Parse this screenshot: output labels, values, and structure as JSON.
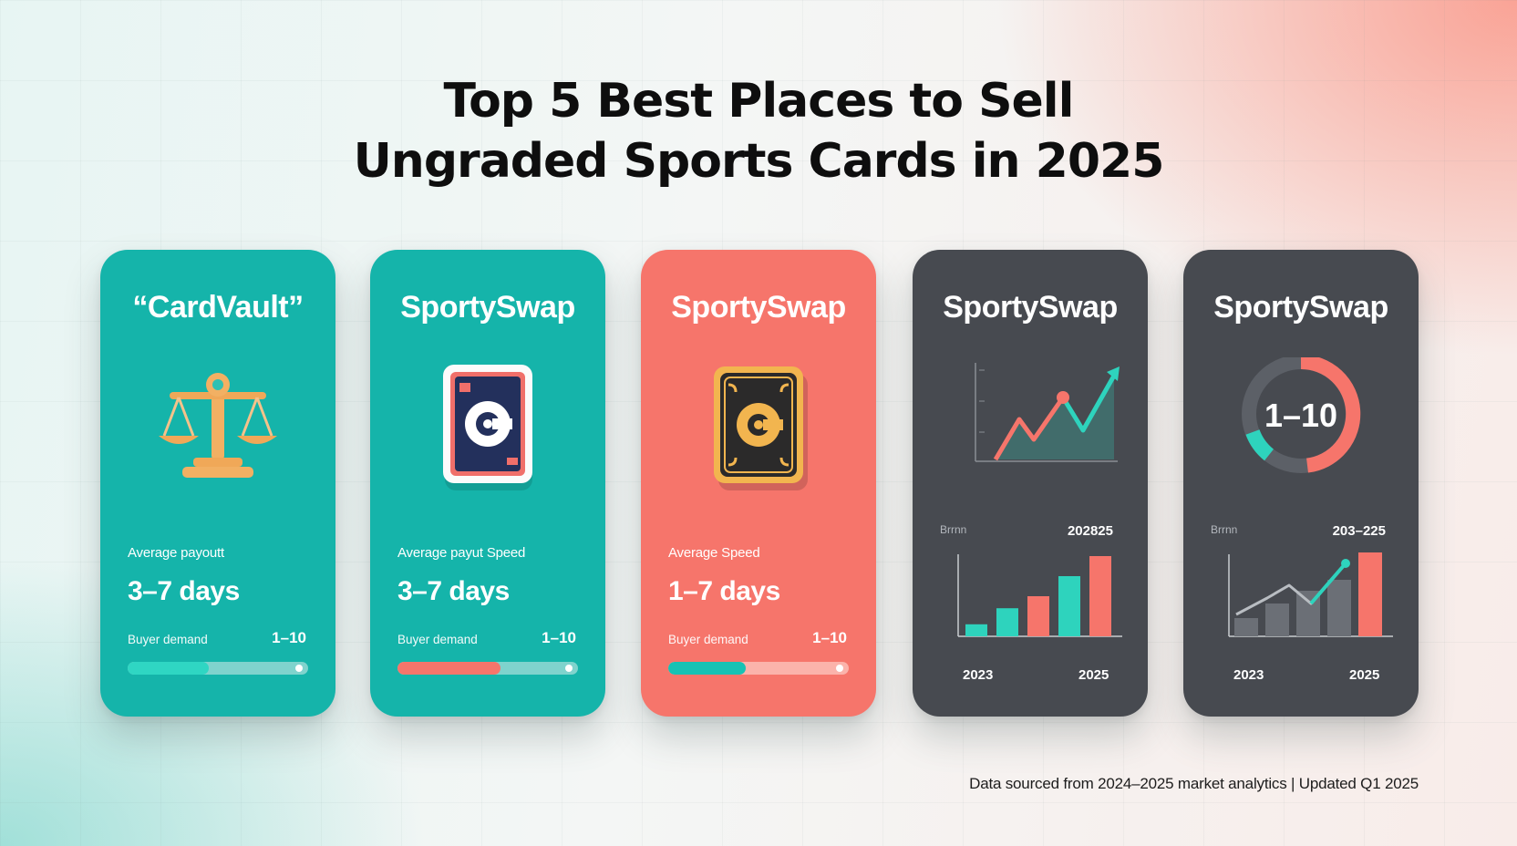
{
  "title_line1": "Top 5 Best Places to Sell",
  "title_line2": "Ungraded Sports Cards in 2025",
  "cards": [
    {
      "name": "“CardVault”",
      "theme": "teal",
      "icon": "scales-icon",
      "metric_label": "Average payoutt",
      "metric_value": "3–7 days",
      "demand_label": "Buyer demand",
      "demand_value": "1–10",
      "demand_level": 0.45,
      "bar_colors": {
        "track": "#7fd3cd",
        "fill": "#2fd6c3"
      }
    },
    {
      "name": "SportySwap",
      "theme": "teal",
      "icon": "trading-card-icon",
      "metric_label": "Average payut Speed",
      "metric_value": "3–7 days",
      "demand_label": "Buyer demand",
      "demand_value": "1–10",
      "demand_level": 0.57,
      "bar_colors": {
        "track": "#7fd3cd",
        "fill": "#f6756b"
      }
    },
    {
      "name": "SportySwap",
      "theme": "coral",
      "icon": "gold-card-icon",
      "metric_label": "Average Speed",
      "metric_value": "1–7 days",
      "demand_label": "Buyer demand",
      "demand_value": "1–10",
      "demand_level": 0.43,
      "bar_colors": {
        "track": "#fbb3ab",
        "fill": "#17c2b4"
      }
    },
    {
      "name": "SportySwap",
      "theme": "dark",
      "icon": "line-chart-icon",
      "range_label": "Brrnn",
      "year_range": "202825",
      "year_start": "2023",
      "year_end": "2025",
      "bar_values": [
        1.5,
        3.5,
        5,
        7.5,
        10
      ]
    },
    {
      "name": "SportySwap",
      "theme": "dark",
      "icon": "donut-gauge-icon",
      "gauge_text": "1–10",
      "range_label": "Brrnn",
      "year_range": "203–225",
      "year_start": "2023",
      "year_end": "2025"
    }
  ],
  "footnote": "Data sourced from 2024–2025 market analytics | Updated Q1 2025",
  "colors": {
    "teal": "#15b4aa",
    "coral": "#f6756b",
    "dark": "#474a50",
    "accent_green": "#2ed3bd",
    "accent_red": "#f6756b"
  }
}
